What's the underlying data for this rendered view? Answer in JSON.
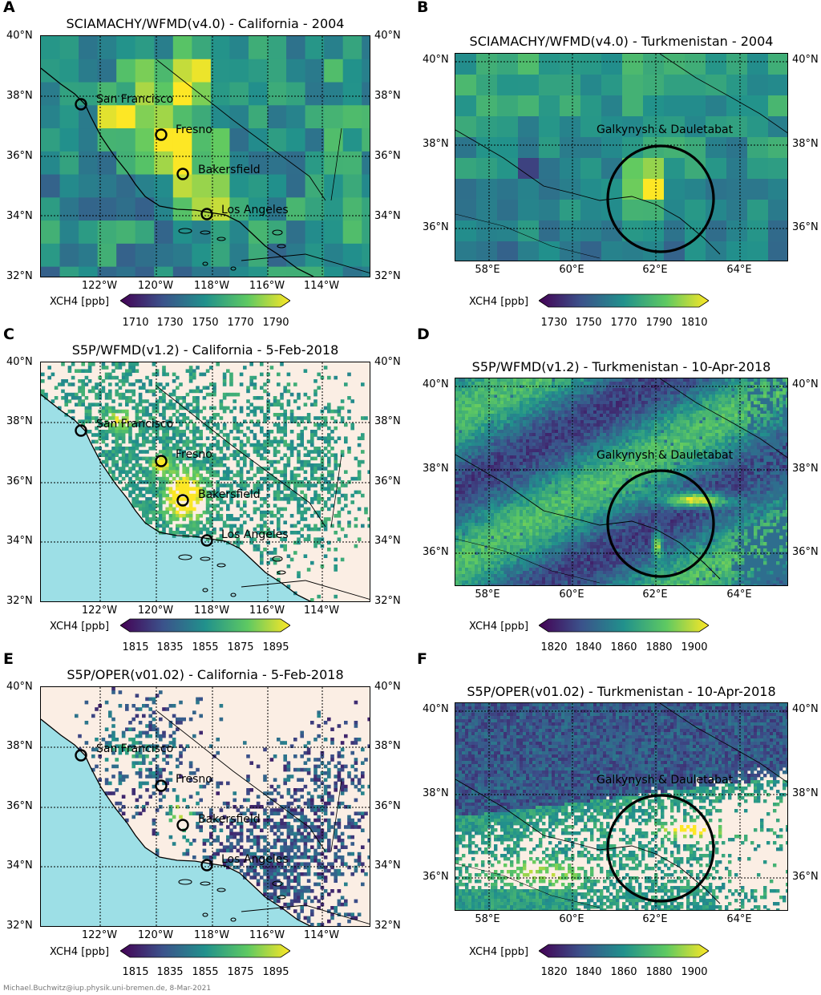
{
  "panels": [
    {
      "letter": "A",
      "title": "SCIAMACHY/WFMD(v4.0) - California - 2004",
      "region": "california",
      "style": "coarse",
      "lat_labels": [
        "40°N",
        "38°N",
        "36°N",
        "34°N",
        "32°N"
      ],
      "lon_labels": [
        "122°W",
        "120°W",
        "118°W",
        "116°W",
        "114°W"
      ],
      "cities": [
        "San Francisco",
        "Fresno",
        "Bakersfield",
        "Los Angeles"
      ],
      "colorbar": {
        "label": "XCH4 [ppb]",
        "ticks": [
          "1710",
          "1730",
          "1750",
          "1770",
          "1790"
        ]
      }
    },
    {
      "letter": "B",
      "title": "SCIAMACHY/WFMD(v4.0) - Turkmenistan - 2004",
      "region": "turkmenistan",
      "style": "coarse",
      "lat_labels": [
        "40°N",
        "38°N",
        "36°N"
      ],
      "lon_labels": [
        "58°E",
        "60°E",
        "62°E",
        "64°E"
      ],
      "site_label": "Galkynysh & Dauletabat",
      "colorbar": {
        "label": "XCH4 [ppb]",
        "ticks": [
          "1730",
          "1750",
          "1770",
          "1790",
          "1810"
        ]
      }
    },
    {
      "letter": "C",
      "title": "S5P/WFMD(v1.2) - California - 5-Feb-2018",
      "region": "california",
      "style": "wfmd",
      "lat_labels": [
        "40°N",
        "38°N",
        "36°N",
        "34°N",
        "32°N"
      ],
      "lon_labels": [
        "122°W",
        "120°W",
        "118°W",
        "116°W",
        "114°W"
      ],
      "cities": [
        "San Francisco",
        "Fresno",
        "Bakersfield",
        "Los Angeles"
      ],
      "colorbar": {
        "label": "XCH4 [ppb]",
        "ticks": [
          "1815",
          "1835",
          "1855",
          "1875",
          "1895"
        ]
      }
    },
    {
      "letter": "D",
      "title": "S5P/WFMD(v1.2) - Turkmenistan - 10-Apr-2018",
      "region": "turkmenistan",
      "style": "wfmd",
      "lat_labels": [
        "40°N",
        "38°N",
        "36°N"
      ],
      "lon_labels": [
        "58°E",
        "60°E",
        "62°E",
        "64°E"
      ],
      "site_label": "Galkynysh & Dauletabat",
      "colorbar": {
        "label": "XCH4 [ppb]",
        "ticks": [
          "1820",
          "1840",
          "1860",
          "1880",
          "1900"
        ]
      }
    },
    {
      "letter": "E",
      "title": "S5P/OPER(v01.02) - California - 5-Feb-2018",
      "region": "california",
      "style": "oper",
      "lat_labels": [
        "40°N",
        "38°N",
        "36°N",
        "34°N",
        "32°N"
      ],
      "lon_labels": [
        "122°W",
        "120°W",
        "118°W",
        "116°W",
        "114°W"
      ],
      "cities": [
        "San Francisco",
        "Fresno",
        "Bakersfield",
        "Los Angeles"
      ],
      "colorbar": {
        "label": "XCH4 [ppb]",
        "ticks": [
          "1815",
          "1835",
          "1855",
          "1875",
          "1895"
        ]
      }
    },
    {
      "letter": "F",
      "title": "S5P/OPER(v01.02) - Turkmenistan - 10-Apr-2018",
      "region": "turkmenistan",
      "style": "oper",
      "lat_labels": [
        "40°N",
        "38°N",
        "36°N"
      ],
      "lon_labels": [
        "58°E",
        "60°E",
        "62°E",
        "64°E"
      ],
      "site_label": "Galkynysh & Dauletabat",
      "colorbar": {
        "label": "XCH4 [ppb]",
        "ticks": [
          "1820",
          "1840",
          "1860",
          "1880",
          "1900"
        ]
      }
    }
  ],
  "footer": "Michael.Buchwitz@iup.physik.uni-bremen.de, 8-Mar-2021",
  "colors": {
    "land": "#fbeee4",
    "ocean": "#9ddfe6",
    "circle": "#000000"
  }
}
